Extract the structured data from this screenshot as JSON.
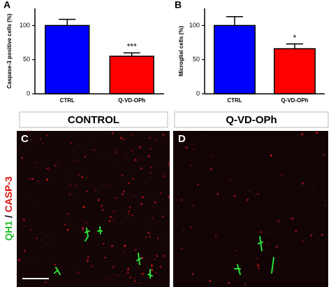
{
  "chart_data": [
    {
      "type": "bar",
      "panel_label": "A",
      "ylabel": "Caspase-3 positive cells (%)",
      "categories": [
        "CTRL",
        "Q-VD-OPh"
      ],
      "values": [
        100,
        55
      ],
      "errors": [
        9,
        5
      ],
      "colors": [
        "#0000ff",
        "#ff0000"
      ],
      "value_annotations": [
        null,
        "***"
      ],
      "ylim": [
        0,
        125
      ],
      "yticks": [
        0,
        50,
        100
      ]
    },
    {
      "type": "bar",
      "panel_label": "B",
      "ylabel": "Microglial cells (%)",
      "categories": [
        "CTRL",
        "Q-VD-OPh"
      ],
      "values": [
        100,
        66
      ],
      "errors": [
        13,
        7
      ],
      "colors": [
        "#0000ff",
        "#ff0000"
      ],
      "value_annotations": [
        null,
        "*"
      ],
      "ylim": [
        0,
        125
      ],
      "yticks": [
        0,
        50,
        100
      ]
    }
  ],
  "image_panels": [
    {
      "header": "CONTROL",
      "panel_label": "C"
    },
    {
      "header": "Q-VD-OPh",
      "panel_label": "D"
    }
  ],
  "stain_label": {
    "marker1": "QH1",
    "separator": "/",
    "marker2": "CASP-3"
  }
}
